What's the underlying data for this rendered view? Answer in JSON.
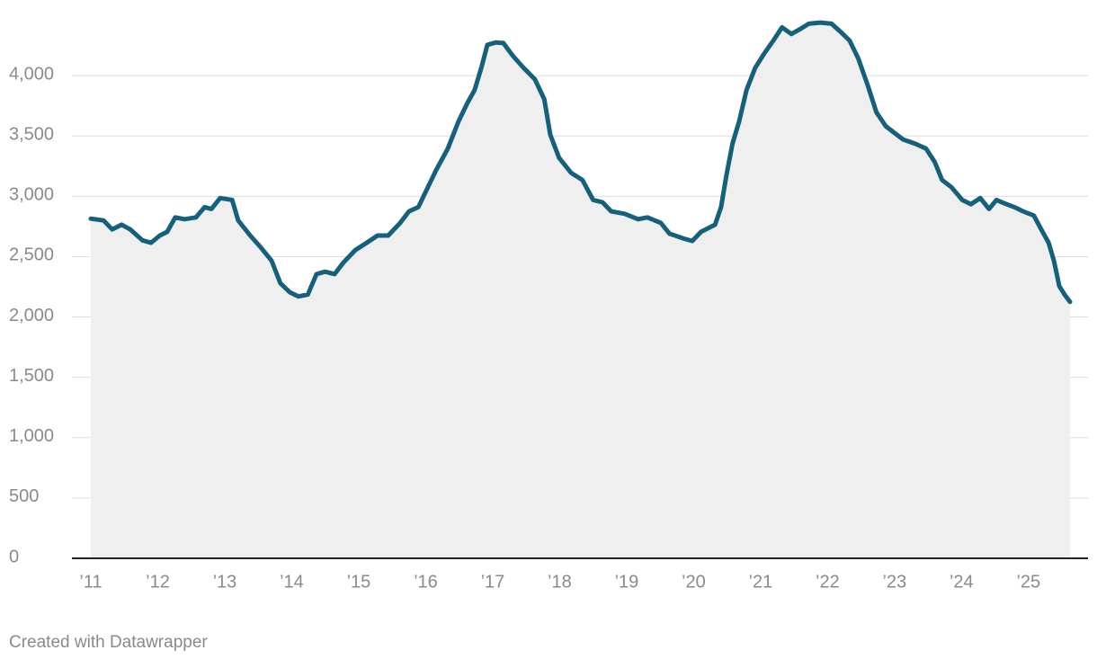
{
  "chart_data": {
    "type": "area-line",
    "x": [
      2011.0,
      2011.19,
      2011.32,
      2011.46,
      2011.59,
      2011.77,
      2011.9,
      2012.03,
      2012.14,
      2012.26,
      2012.4,
      2012.57,
      2012.7,
      2012.8,
      2012.93,
      2013.11,
      2013.2,
      2013.38,
      2013.54,
      2013.7,
      2013.83,
      2013.97,
      2014.1,
      2014.24,
      2014.37,
      2014.5,
      2014.64,
      2014.77,
      2014.95,
      2015.12,
      2015.28,
      2015.44,
      2015.62,
      2015.75,
      2015.89,
      2016.02,
      2016.15,
      2016.33,
      2016.49,
      2016.62,
      2016.73,
      2016.83,
      2016.92,
      2017.05,
      2017.16,
      2017.3,
      2017.46,
      2017.63,
      2017.77,
      2017.86,
      2017.99,
      2018.17,
      2018.34,
      2018.5,
      2018.64,
      2018.77,
      2018.97,
      2019.17,
      2019.31,
      2019.51,
      2019.64,
      2019.85,
      2019.98,
      2020.11,
      2020.32,
      2020.41,
      2020.49,
      2020.58,
      2020.68,
      2020.79,
      2020.92,
      2021.05,
      2021.19,
      2021.32,
      2021.46,
      2021.59,
      2021.72,
      2021.89,
      2022.06,
      2022.19,
      2022.33,
      2022.46,
      2022.6,
      2022.73,
      2022.87,
      2023.0,
      2023.13,
      2023.31,
      2023.47,
      2023.6,
      2023.71,
      2023.85,
      2024.01,
      2024.14,
      2024.28,
      2024.41,
      2024.52,
      2024.65,
      2024.79,
      2024.92,
      2025.08,
      2025.19,
      2025.3,
      2025.38,
      2025.46,
      2025.54,
      2025.62
    ],
    "values": [
      2815,
      2800,
      2725,
      2765,
      2725,
      2635,
      2615,
      2675,
      2705,
      2825,
      2810,
      2825,
      2910,
      2895,
      2985,
      2970,
      2800,
      2675,
      2575,
      2465,
      2280,
      2205,
      2170,
      2185,
      2355,
      2375,
      2355,
      2450,
      2555,
      2615,
      2675,
      2675,
      2780,
      2875,
      2910,
      3060,
      3210,
      3395,
      3620,
      3770,
      3880,
      4065,
      4255,
      4275,
      4270,
      4165,
      4065,
      3970,
      3805,
      3510,
      3320,
      3195,
      3135,
      2970,
      2950,
      2875,
      2855,
      2810,
      2825,
      2780,
      2690,
      2650,
      2630,
      2705,
      2765,
      2910,
      3175,
      3435,
      3620,
      3880,
      4065,
      4180,
      4290,
      4400,
      4345,
      4385,
      4430,
      4440,
      4430,
      4365,
      4290,
      4140,
      3920,
      3695,
      3580,
      3525,
      3470,
      3435,
      3395,
      3285,
      3135,
      3075,
      2970,
      2935,
      2985,
      2895,
      2970,
      2940,
      2910,
      2875,
      2840,
      2725,
      2615,
      2465,
      2255,
      2185,
      2125
    ],
    "color": "#15607a",
    "area_color": "#efefef",
    "xlim": [
      2011,
      2025.62
    ],
    "xticks": [
      {
        "value": 2011,
        "label": "’11"
      },
      {
        "value": 2012,
        "label": "’12"
      },
      {
        "value": 2013,
        "label": "’13"
      },
      {
        "value": 2014,
        "label": "’14"
      },
      {
        "value": 2015,
        "label": "’15"
      },
      {
        "value": 2016,
        "label": "’16"
      },
      {
        "value": 2017,
        "label": "’17"
      },
      {
        "value": 2018,
        "label": "’18"
      },
      {
        "value": 2019,
        "label": "’19"
      },
      {
        "value": 2020,
        "label": "’20"
      },
      {
        "value": 2021,
        "label": "’21"
      },
      {
        "value": 2022,
        "label": "’22"
      },
      {
        "value": 2023,
        "label": "’23"
      },
      {
        "value": 2024,
        "label": "’24"
      },
      {
        "value": 2025,
        "label": "’25"
      }
    ],
    "ylim": [
      0,
      4500
    ],
    "yticks": [
      0,
      500,
      {
        "value": 1000,
        "label": "1,000"
      },
      {
        "value": 1500,
        "label": "1,500"
      },
      {
        "value": 2000,
        "label": "2,000"
      },
      {
        "value": 2500,
        "label": "2,500"
      },
      {
        "value": 3000,
        "label": "3,000"
      },
      {
        "value": 3500,
        "label": "3,500"
      },
      {
        "value": 4000,
        "label": "4,000"
      }
    ],
    "grid": true
  },
  "footer": "Created with Datawrapper"
}
